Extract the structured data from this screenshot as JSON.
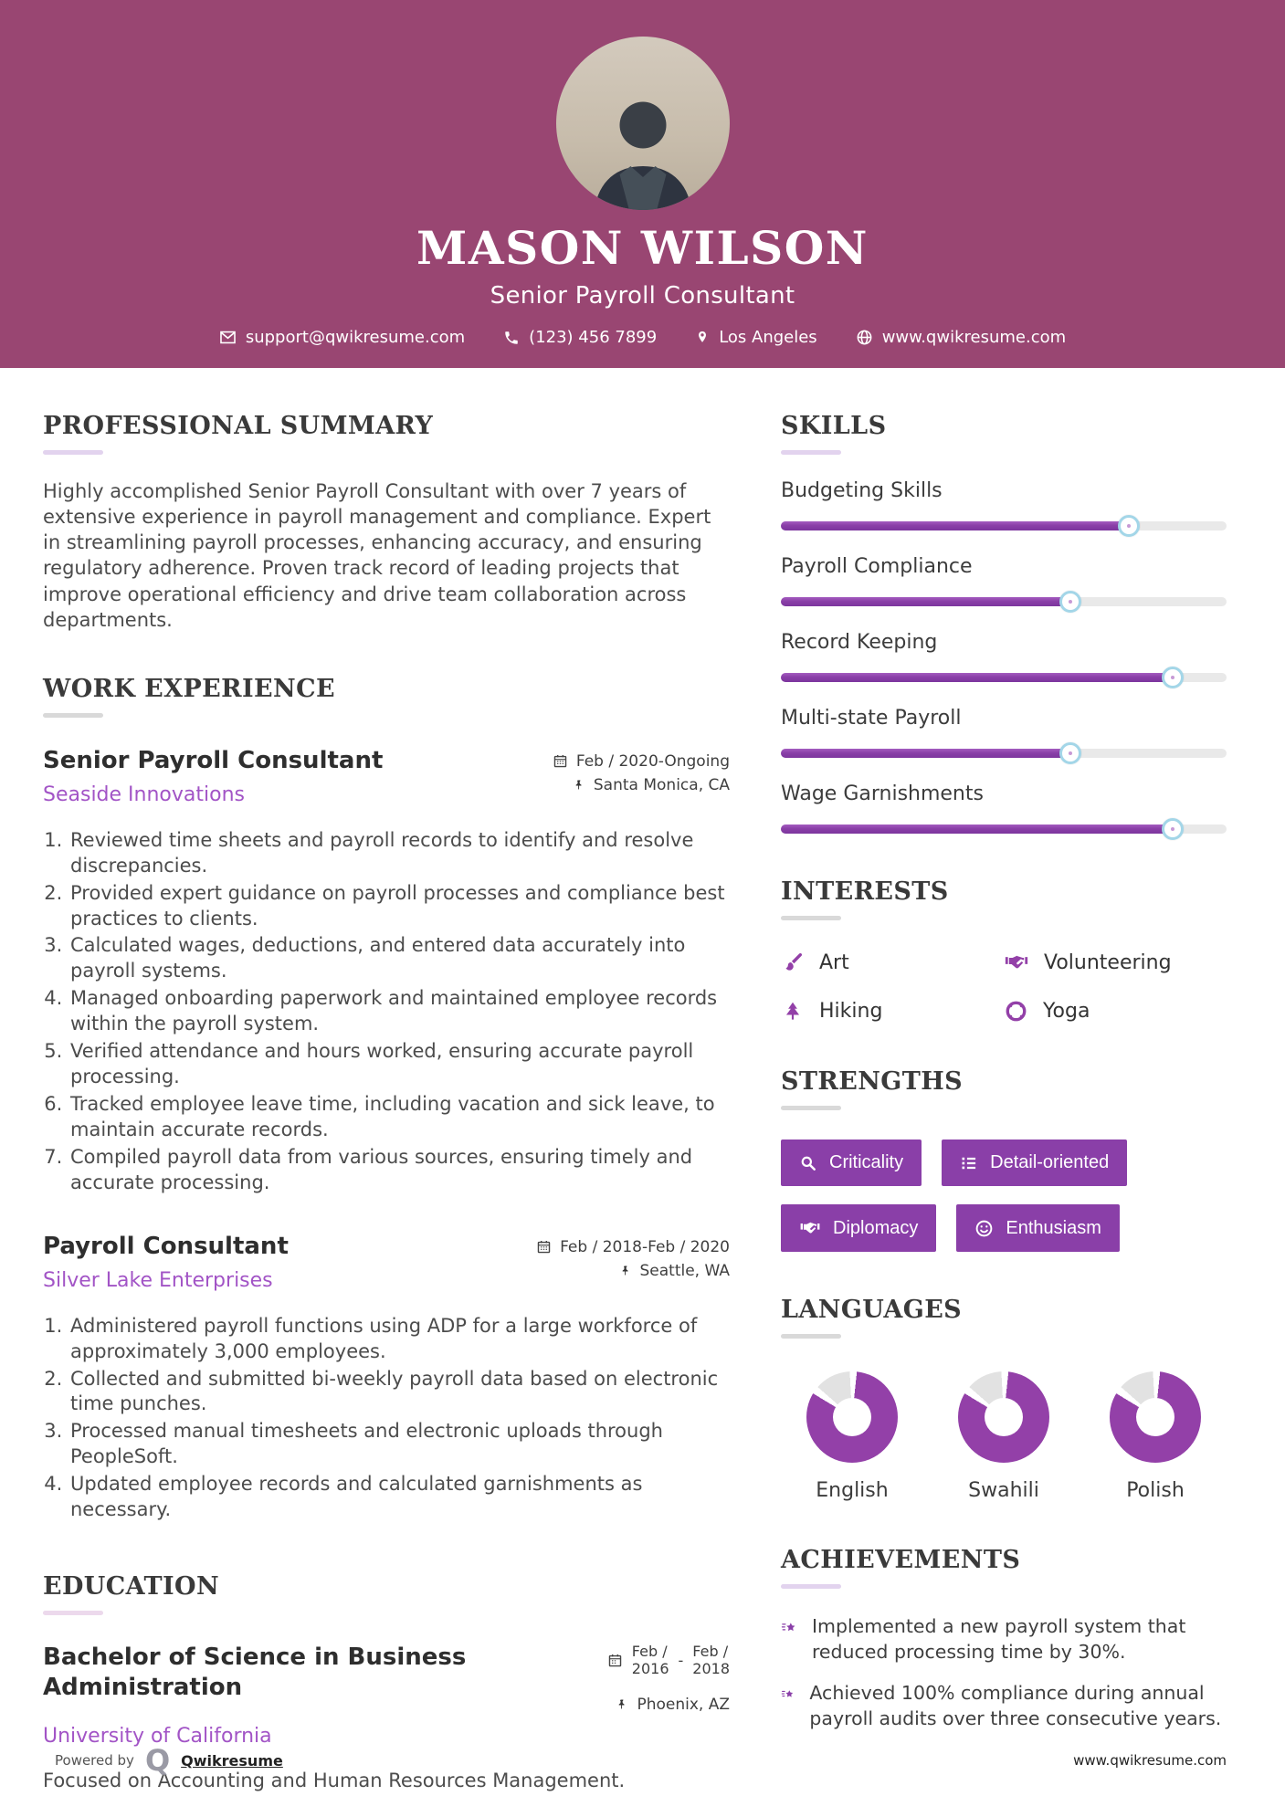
{
  "colors": {
    "header_bg": "#994672",
    "accent_purple": "#8a3fa8",
    "link_purple": "#a254c6",
    "slider_track": "#e9e9e9",
    "handle_ring": "#a3d6e8",
    "donut_purple": "#9340a8",
    "donut_gray": "#e2e2e2"
  },
  "header": {
    "name": "MASON WILSON",
    "title": "Senior Payroll Consultant",
    "contact": {
      "email": "support@qwikresume.com",
      "phone": "(123) 456 7899",
      "location": "Los Angeles",
      "website": "www.qwikresume.com"
    }
  },
  "summary": {
    "heading": "PROFESSIONAL SUMMARY",
    "text": "Highly accomplished Senior Payroll Consultant with over 7 years of extensive experience in payroll management and compliance. Expert in streamlining payroll processes, enhancing accuracy, and ensuring regulatory adherence. Proven track record of leading projects that improve operational efficiency and drive team collaboration across departments."
  },
  "work": {
    "heading": "WORK EXPERIENCE",
    "jobs": [
      {
        "title": "Senior Payroll Consultant",
        "company": "Seaside Innovations",
        "date": "Feb / 2020-Ongoing",
        "location": "Santa Monica, CA",
        "items": [
          "Reviewed time sheets and payroll records to identify and resolve discrepancies.",
          "Provided expert guidance on payroll processes and compliance best practices to clients.",
          "Calculated wages, deductions, and entered data accurately into payroll systems.",
          "Managed onboarding paperwork and maintained employee records within the payroll system.",
          "Verified attendance and hours worked, ensuring accurate payroll processing.",
          "Tracked employee leave time, including vacation and sick leave, to maintain accurate records.",
          "Compiled payroll data from various sources, ensuring timely and accurate processing."
        ]
      },
      {
        "title": "Payroll Consultant",
        "company": "Silver Lake Enterprises",
        "date": "Feb / 2018-Feb / 2020",
        "location": "Seattle, WA",
        "items": [
          "Administered payroll functions using ADP for a large workforce of approximately 3,000 employees.",
          "Collected and submitted bi-weekly payroll data based on electronic time punches.",
          "Processed manual timesheets and electronic uploads through PeopleSoft.",
          "Updated employee records and calculated garnishments as necessary."
        ]
      }
    ]
  },
  "education": {
    "heading": "EDUCATION",
    "degree": "Bachelor of Science in Business Administration",
    "school": "University of California",
    "date_start_top": "Feb /",
    "date_start_bottom": "2016",
    "date_separator": "-",
    "date_end_top": "Feb /",
    "date_end_bottom": "2018",
    "location": "Phoenix, AZ",
    "note": "Focused on Accounting and Human Resources Management."
  },
  "skills": {
    "heading": "SKILLS",
    "items": [
      {
        "label": "Budgeting Skills",
        "percent": 78
      },
      {
        "label": "Payroll Compliance",
        "percent": 65
      },
      {
        "label": "Record Keeping",
        "percent": 88
      },
      {
        "label": "Multi-state Payroll",
        "percent": 65
      },
      {
        "label": "Wage Garnishments",
        "percent": 88
      }
    ]
  },
  "interests": {
    "heading": "INTERESTS",
    "items": [
      {
        "icon": "paintbrush-icon",
        "label": "Art"
      },
      {
        "icon": "handshake-icon",
        "label": "Volunteering"
      },
      {
        "icon": "pine-tree-icon",
        "label": "Hiking"
      },
      {
        "icon": "wheel-icon",
        "label": "Yoga"
      }
    ]
  },
  "strengths": {
    "heading": "STRENGTHS",
    "items": [
      {
        "icon": "magnifier-icon",
        "label": "Criticality"
      },
      {
        "icon": "list-icon",
        "label": "Detail-oriented"
      },
      {
        "icon": "handshake-icon",
        "label": "Diplomacy"
      },
      {
        "icon": "smiley-icon",
        "label": "Enthusiasm"
      }
    ]
  },
  "languages": {
    "heading": "LANGUAGES",
    "items": [
      {
        "label": "English",
        "percent": 82
      },
      {
        "label": "Swahili",
        "percent": 82
      },
      {
        "label": "Polish",
        "percent": 82
      }
    ]
  },
  "achievements": {
    "heading": "ACHIEVEMENTS",
    "items": [
      "Implemented a new payroll system that reduced processing time by 30%.",
      "Achieved 100% compliance during annual payroll audits over three consecutive years."
    ]
  },
  "footer": {
    "powered_by": "Powered by",
    "logo_letter": "Q",
    "brand": "Qwikresume",
    "site": "www.qwikresume.com"
  }
}
